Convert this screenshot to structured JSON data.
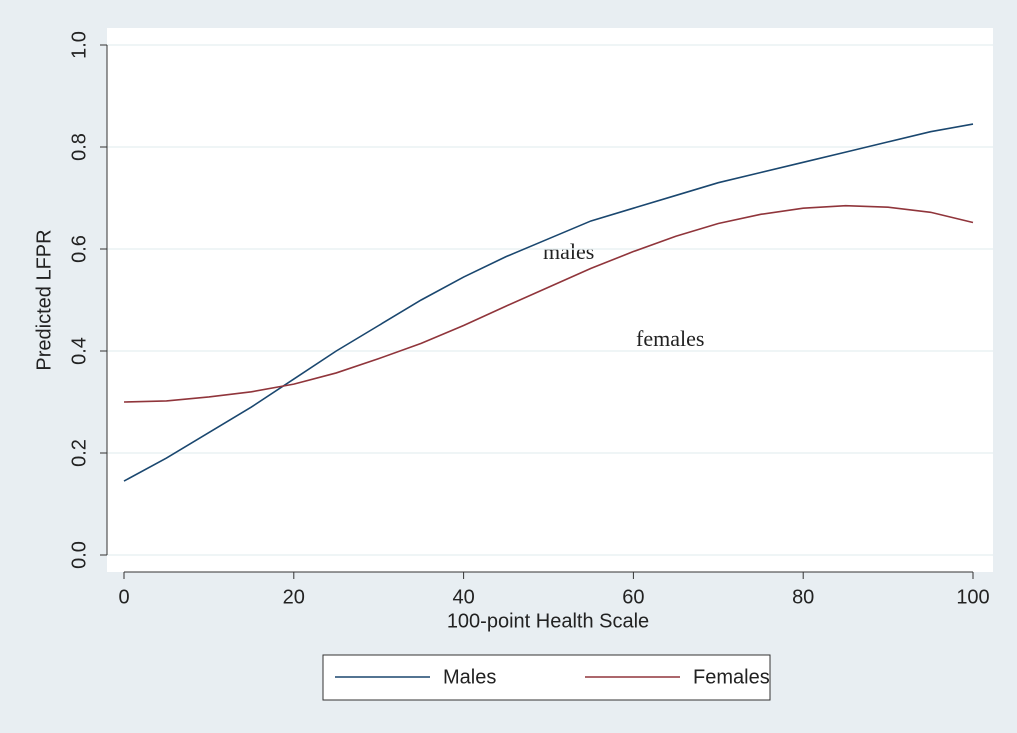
{
  "chart_data": {
    "type": "line",
    "x": [
      0,
      5,
      10,
      15,
      20,
      25,
      30,
      35,
      40,
      45,
      50,
      55,
      60,
      65,
      70,
      75,
      80,
      85,
      90,
      95,
      100
    ],
    "series": [
      {
        "name": "Males",
        "color": "#1a476f",
        "values": [
          0.145,
          0.19,
          0.24,
          0.29,
          0.345,
          0.4,
          0.45,
          0.5,
          0.545,
          0.585,
          0.62,
          0.655,
          0.68,
          0.705,
          0.73,
          0.75,
          0.77,
          0.79,
          0.81,
          0.83,
          0.845
        ]
      },
      {
        "name": "Females",
        "color": "#90353b",
        "values": [
          0.3,
          0.302,
          0.31,
          0.32,
          0.335,
          0.357,
          0.385,
          0.415,
          0.45,
          0.488,
          0.525,
          0.562,
          0.595,
          0.625,
          0.65,
          0.668,
          0.68,
          0.685,
          0.682,
          0.672,
          0.652
        ]
      }
    ],
    "xlabel": "100-point Health Scale",
    "ylabel": "Predicted LFPR",
    "xlim": [
      0,
      100
    ],
    "xticks": [
      0,
      20,
      40,
      60,
      80,
      100
    ],
    "ylim": [
      0,
      1
    ],
    "yticks": [
      {
        "value": 0,
        "label": "0.0"
      },
      0.2,
      0.4,
      0.6,
      0.8,
      {
        "value": 1,
        "label": "1.0"
      }
    ],
    "grid": true,
    "legend": "bottom",
    "annotations": [
      "males",
      "females"
    ]
  }
}
